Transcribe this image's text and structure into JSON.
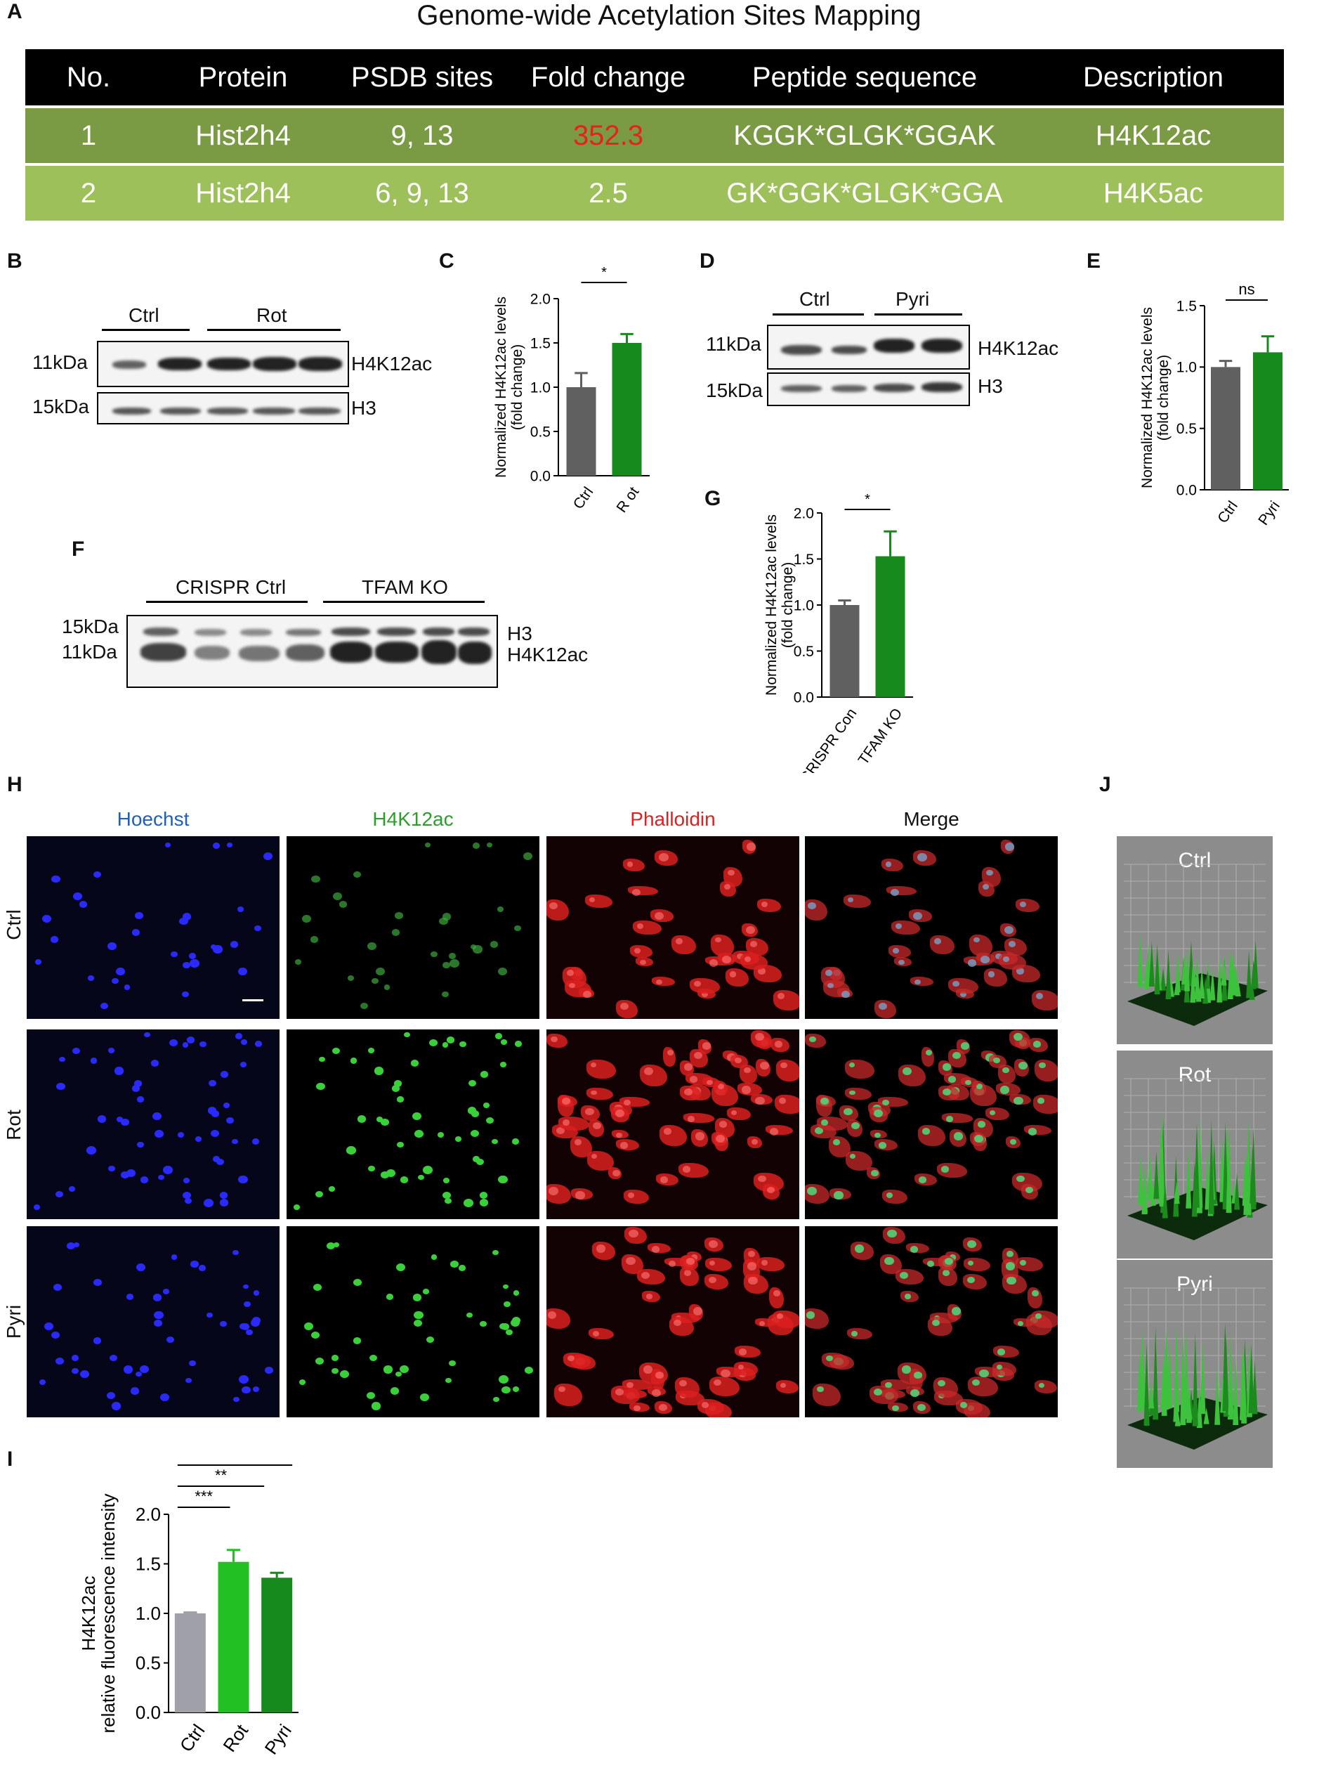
{
  "panel_a": {
    "letter": "A",
    "title": "Genome-wide Acetylation Sites Mapping",
    "headers": [
      "No.",
      "Protein",
      "PSDB sites",
      "Fold change",
      "Peptide sequence",
      "Description"
    ],
    "rows": [
      [
        "1",
        "Hist2h4",
        "9, 13",
        "352.3",
        "KGGK*GLGK*GGAK",
        "H4K12ac"
      ],
      [
        "2",
        "Hist2h4",
        "6, 9, 13",
        "2.5",
        "GK*GGK*GLGK*GGA",
        "H4K5ac"
      ]
    ],
    "highlight_color": "#e8211c"
  },
  "panel_b": {
    "letter": "B",
    "groups": [
      "Ctrl",
      "Rot"
    ],
    "markers": [
      "11kDa",
      "15kDa"
    ],
    "bands": [
      "H4K12ac",
      "H3"
    ]
  },
  "panel_c": {
    "letter": "C",
    "ylabel_line1": "Normalized H4K12ac levels",
    "ylabel_line2": "(fold change)",
    "sig": "*",
    "chart_data": {
      "type": "bar",
      "categories": [
        "Ctrl",
        "R ot"
      ],
      "values": [
        1.0,
        1.5
      ],
      "errors": [
        0.16,
        0.1
      ],
      "colors": [
        "#606060",
        "#168a1c"
      ],
      "ylim": [
        0,
        2.0
      ],
      "yticks": [
        "0.0",
        "0.5",
        "1.0",
        "1.5",
        "2.0"
      ]
    }
  },
  "panel_d": {
    "letter": "D",
    "groups": [
      "Ctrl",
      "Pyri"
    ],
    "markers": [
      "11kDa",
      "15kDa"
    ],
    "bands": [
      "H4K12ac",
      "H3"
    ]
  },
  "panel_e": {
    "letter": "E",
    "ylabel_line1": "Normalized H4K12ac levels",
    "ylabel_line2": "(fold change)",
    "sig": "ns",
    "chart_data": {
      "type": "bar",
      "categories": [
        "Ctrl",
        "Pyri"
      ],
      "values": [
        1.0,
        1.12
      ],
      "errors": [
        0.05,
        0.13
      ],
      "colors": [
        "#606060",
        "#168a1c"
      ],
      "ylim": [
        0,
        1.5
      ],
      "yticks": [
        "0.0",
        "0.5",
        "1.0",
        "1.5"
      ]
    }
  },
  "panel_f": {
    "letter": "F",
    "groups": [
      "CRISPR Ctrl",
      "TFAM KO"
    ],
    "markers": [
      "15kDa",
      "11kDa"
    ],
    "bands": [
      "H3",
      "H4K12ac"
    ]
  },
  "panel_g": {
    "letter": "G",
    "ylabel_line1": "Normalized H4K12ac levels",
    "ylabel_line2": "(fold change)",
    "sig": "*",
    "chart_data": {
      "type": "bar",
      "categories": [
        "CRISPR Con",
        "TFAM KO"
      ],
      "values": [
        1.0,
        1.53
      ],
      "errors": [
        0.05,
        0.27
      ],
      "colors": [
        "#606060",
        "#168a1c"
      ],
      "ylim": [
        0,
        2.0
      ],
      "yticks": [
        "0.0",
        "0.5",
        "1.0",
        "1.5",
        "2.0"
      ]
    }
  },
  "panel_h": {
    "letter": "H",
    "columns": [
      {
        "label": "Hoechst",
        "color": "#1f5fbf"
      },
      {
        "label": "H4K12ac",
        "color": "#2aa02a"
      },
      {
        "label": "Phalloidin",
        "color": "#e02020"
      },
      {
        "label": "Merge",
        "color": "#111111"
      }
    ],
    "rows": [
      "Ctrl",
      "Rot",
      "Pyri"
    ]
  },
  "panel_i": {
    "letter": "I",
    "ylabel_line1": "H4K12ac",
    "ylabel_line2": "relative fluorescence intensity",
    "sigs": [
      "***",
      "**",
      "*"
    ],
    "chart_data": {
      "type": "bar",
      "categories": [
        "Ctrl",
        "Rot",
        "Pyri"
      ],
      "values": [
        1.0,
        1.52,
        1.36
      ],
      "errors": [
        0.01,
        0.12,
        0.05
      ],
      "colors": [
        "#a0a0a8",
        "#22c022",
        "#168a1c"
      ],
      "ylim": [
        0,
        2.0
      ],
      "yticks": [
        "0.0",
        "0.5",
        "1.0",
        "1.5",
        "2.0"
      ]
    }
  },
  "panel_j": {
    "letter": "J",
    "labels": [
      "Ctrl",
      "Rot",
      "Pyri"
    ]
  }
}
